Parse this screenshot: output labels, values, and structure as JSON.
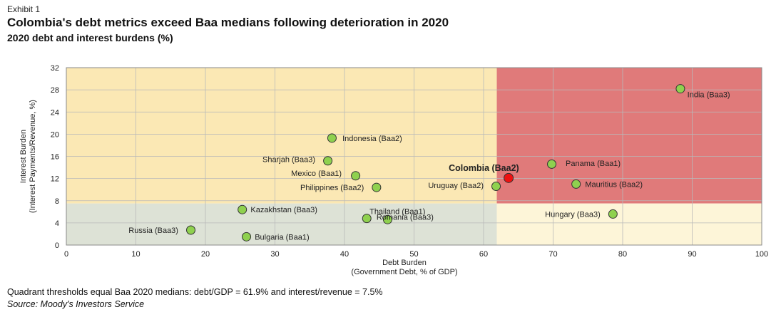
{
  "header": {
    "exhibit": "Exhibit 1",
    "title": "Colombia's debt metrics exceed Baa medians following deterioration in 2020",
    "subtitle": "2020 debt and interest burdens (%)"
  },
  "footer": {
    "note": "Quadrant thresholds equal Baa 2020 medians: debt/GDP = 61.9% and interest/revenue = 7.5%",
    "source": "Source: Moody's Investors Service"
  },
  "chart_data": {
    "type": "scatter",
    "xlabel": [
      "Debt Burden",
      "(Government Debt, % of GDP)"
    ],
    "ylabel": [
      "Interest Burden",
      "(Interest Payments/Revenue, %)"
    ],
    "xlim": [
      0,
      100
    ],
    "ylim": [
      0,
      32
    ],
    "xticks": [
      0,
      10,
      20,
      30,
      40,
      50,
      60,
      70,
      80,
      90,
      100
    ],
    "yticks": [
      0,
      4,
      8,
      12,
      16,
      20,
      24,
      28,
      32
    ],
    "grid": true,
    "thresholds": {
      "x": 61.9,
      "y": 7.5
    },
    "quadrant_colors": {
      "top_left": "#fbe8b4",
      "top_right": "#e07a7a",
      "bottom_left": "#dde2d6",
      "bottom_right": "#fdf5d8"
    },
    "marker_colors": {
      "default": "#8fd14f",
      "highlight": "#ee1111",
      "edge": "#333333"
    },
    "points": [
      {
        "label": "India (Baa3)",
        "x": 88.3,
        "y": 28.2,
        "lx": 1.0,
        "ly": -1.0,
        "anchor": "start"
      },
      {
        "label": "Indonesia (Baa2)",
        "x": 38.2,
        "y": 19.3,
        "lx": 1.5,
        "ly": 0,
        "anchor": "start"
      },
      {
        "label": "Sharjah (Baa3)",
        "x": 37.6,
        "y": 15.2,
        "lx": -1.8,
        "ly": 0.3,
        "anchor": "end"
      },
      {
        "label": "Mexico (Baa1)",
        "x": 41.6,
        "y": 12.5,
        "lx": -2.0,
        "ly": 0.5,
        "anchor": "end"
      },
      {
        "label": "Philippines (Baa2)",
        "x": 44.6,
        "y": 10.4,
        "lx": -1.8,
        "ly": 0,
        "anchor": "end"
      },
      {
        "label": "Panama (Baa1)",
        "x": 69.8,
        "y": 14.6,
        "lx": 2.0,
        "ly": 0.2,
        "anchor": "start"
      },
      {
        "label": "Colombia (Baa2)",
        "x": 63.6,
        "y": 12.1,
        "lx": 1.5,
        "ly": 1.8,
        "anchor": "end",
        "highlight": true
      },
      {
        "label": "Uruguay (Baa2)",
        "x": 61.8,
        "y": 10.6,
        "lx": -1.8,
        "ly": 0.2,
        "anchor": "end"
      },
      {
        "label": "Mauritius (Baa2)",
        "x": 73.3,
        "y": 11.0,
        "lx": 1.3,
        "ly": 0,
        "anchor": "start"
      },
      {
        "label": "Kazakhstan (Baa3)",
        "x": 25.3,
        "y": 6.4,
        "lx": 1.2,
        "ly": 0,
        "anchor": "start"
      },
      {
        "label": "Thailand (Baa1)",
        "x": 43.2,
        "y": 4.8,
        "lx": 0.4,
        "ly": 1.3,
        "anchor": "start"
      },
      {
        "label": "Romania (Baa3)",
        "x": 46.2,
        "y": 4.6,
        "lx": -1.6,
        "ly": 0.5,
        "anchor": "start"
      },
      {
        "label": "Hungary (Baa3)",
        "x": 78.6,
        "y": 5.6,
        "lx": -1.8,
        "ly": 0,
        "anchor": "end"
      },
      {
        "label": "Russia (Baa3)",
        "x": 17.9,
        "y": 2.7,
        "lx": -1.8,
        "ly": 0,
        "anchor": "end"
      },
      {
        "label": "Bulgaria (Baa1)",
        "x": 25.9,
        "y": 1.5,
        "lx": 1.2,
        "ly": 0,
        "anchor": "start"
      }
    ]
  }
}
